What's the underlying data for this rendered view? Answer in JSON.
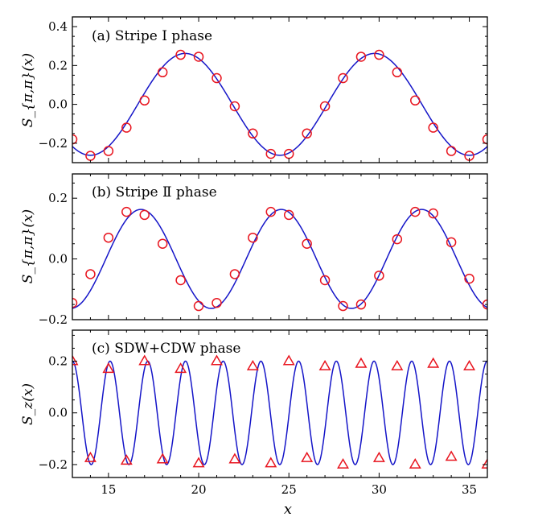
{
  "chart_data": [
    {
      "type": "scatter",
      "title": "(a) Stripe I phase",
      "ylabel": "S_{π,π}(x)",
      "xlabel": "",
      "xlim": [
        13,
        36
      ],
      "ylim": [
        -0.3,
        0.45
      ],
      "yticks": [
        "0.4",
        "0.2",
        "0.0",
        "−0.2"
      ],
      "ytick_values": [
        0.4,
        0.2,
        0.0,
        -0.2
      ],
      "marker": "circle",
      "fit": {
        "type": "sine",
        "amplitude": 0.262,
        "period": 10.5,
        "phase_x": 14.0,
        "form": "-cos"
      },
      "series": [
        {
          "x": [
            13,
            14,
            15,
            16,
            17,
            18,
            19,
            20,
            21,
            22,
            23,
            24,
            25,
            26,
            27,
            28,
            29,
            30,
            31,
            32,
            33,
            34,
            35,
            36
          ],
          "y": [
            -0.18,
            -0.265,
            -0.24,
            -0.12,
            0.02,
            0.165,
            0.255,
            0.245,
            0.135,
            -0.01,
            -0.15,
            -0.255,
            -0.255,
            -0.15,
            -0.01,
            0.135,
            0.245,
            0.255,
            0.165,
            0.02,
            -0.12,
            -0.24,
            -0.265,
            -0.18
          ]
        }
      ]
    },
    {
      "type": "scatter",
      "title": "(b) Stripe Ⅱ phase",
      "ylabel": "S_{π,π}(x)",
      "xlabel": "",
      "xlim": [
        13,
        36
      ],
      "ylim": [
        -0.2,
        0.28
      ],
      "yticks": [
        "0.2",
        "0.0",
        "−0.2"
      ],
      "ytick_values": [
        0.2,
        0.0,
        -0.2
      ],
      "marker": "circle",
      "fit": {
        "type": "sine",
        "amplitude": 0.163,
        "period": 7.78,
        "phase_x": 16.8,
        "form": "cos"
      },
      "series": [
        {
          "x": [
            13,
            14,
            15,
            16,
            17,
            18,
            19,
            20,
            21,
            22,
            23,
            24,
            25,
            26,
            27,
            28,
            29,
            30,
            31,
            32,
            33,
            34,
            35,
            36
          ],
          "y": [
            -0.145,
            -0.05,
            0.07,
            0.155,
            0.145,
            0.05,
            -0.07,
            -0.155,
            -0.145,
            -0.05,
            0.07,
            0.155,
            0.145,
            0.05,
            -0.07,
            -0.155,
            -0.15,
            -0.055,
            0.065,
            0.155,
            0.15,
            0.055,
            -0.065,
            -0.15
          ]
        }
      ]
    },
    {
      "type": "scatter",
      "title": "(c) SDW+CDW phase",
      "ylabel": "S_z(x)",
      "xlabel": "x",
      "xlim": [
        13,
        36
      ],
      "ylim": [
        -0.25,
        0.32
      ],
      "xticks": [
        "15",
        "20",
        "25",
        "30",
        "35"
      ],
      "xtick_values": [
        15,
        20,
        25,
        30,
        35
      ],
      "yticks": [
        "0.2",
        "0.0",
        "−0.2"
      ],
      "ytick_values": [
        0.2,
        0.0,
        -0.2
      ],
      "marker": "triangle",
      "fit": {
        "type": "sine",
        "amplitude": 0.2,
        "period": 2.09,
        "phase_x": 13.0,
        "form": "cos"
      },
      "series": [
        {
          "x": [
            13,
            14,
            15,
            16,
            17,
            18,
            19,
            20,
            21,
            22,
            23,
            24,
            25,
            26,
            27,
            28,
            29,
            30,
            31,
            32,
            33,
            34,
            35,
            36
          ],
          "y": [
            0.2,
            -0.175,
            0.17,
            -0.185,
            0.2,
            -0.18,
            0.17,
            -0.195,
            0.2,
            -0.18,
            0.18,
            -0.195,
            0.2,
            -0.175,
            0.18,
            -0.2,
            0.19,
            -0.175,
            0.18,
            -0.2,
            0.19,
            -0.17,
            0.18,
            -0.2
          ]
        }
      ]
    }
  ]
}
